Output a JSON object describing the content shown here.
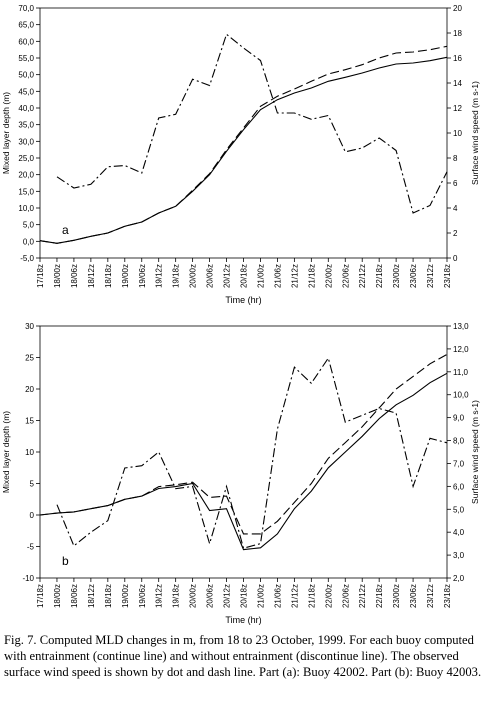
{
  "chart_data": [
    {
      "type": "line",
      "panel_label": "a",
      "xlabel": "Time (hr)",
      "ylabel": "Mixed layer depth (m)",
      "y2label": "Surface wind speed (m s-1)",
      "categories": [
        "17/18z",
        "18/00z",
        "18/06z",
        "18/12z",
        "18/18z",
        "19/00z",
        "19/06z",
        "19/12z",
        "19/18z",
        "20/00z",
        "20/06z",
        "20/12z",
        "20/18z",
        "21/00z",
        "21/06z",
        "21/12z",
        "21/18z",
        "22/00z",
        "22/06z",
        "22/12z",
        "22/18z",
        "23/00z",
        "23/06z",
        "23/12z",
        "23/18z"
      ],
      "ylim": [
        -5,
        70
      ],
      "yticks": [
        "-5,0",
        "0,0",
        "5,0",
        "10,0",
        "15,0",
        "20,0",
        "25,0",
        "30,0",
        "35,0",
        "40,0",
        "45,0",
        "50,0",
        "55,0",
        "60,0",
        "65,0",
        "70,0"
      ],
      "y2lim": [
        0,
        20
      ],
      "y2ticks": [
        "0",
        "2",
        "4",
        "6",
        "8",
        "10",
        "12",
        "14",
        "16",
        "18",
        "20"
      ],
      "series": [
        {
          "key": "entrain",
          "axis": "left",
          "style": "solid",
          "values": [
            0.2,
            -0.6,
            0.3,
            1.5,
            2.5,
            4.5,
            5.8,
            8.5,
            10.5,
            15,
            20,
            27,
            33.5,
            39.5,
            42.5,
            44.5,
            46,
            48,
            49.2,
            50.5,
            52,
            53.2,
            53.5,
            54.2,
            55.2
          ]
        },
        {
          "key": "no_entrain",
          "axis": "left",
          "style": "dash",
          "values": [
            0.2,
            -0.6,
            0.3,
            1.5,
            2.5,
            4.5,
            5.8,
            8.5,
            10.5,
            15.3,
            20.3,
            27.5,
            34,
            40.5,
            43.5,
            45.7,
            48,
            50.2,
            51.5,
            53,
            55,
            56.5,
            56.8,
            57.5,
            58.5
          ]
        },
        {
          "key": "wind",
          "axis": "right",
          "style": "dashdot",
          "values": [
            null,
            6.5,
            5.6,
            5.9,
            7.3,
            7.4,
            6.8,
            11.2,
            11.5,
            14.3,
            13.8,
            17.9,
            16.8,
            15.8,
            11.6,
            11.6,
            11.1,
            11.4,
            8.5,
            8.8,
            9.6,
            8.6,
            3.6,
            4.2,
            6.9
          ]
        }
      ]
    },
    {
      "type": "line",
      "panel_label": "b",
      "xlabel": "Time (hr)",
      "ylabel": "Mixed layer depth (m)",
      "y2label": "Surface wind speed (m s-1)",
      "categories": [
        "17/18z",
        "18/00z",
        "18/06z",
        "18/12z",
        "18/18z",
        "19/00z",
        "19/06z",
        "19/12z",
        "19/18z",
        "20/00z",
        "20/06z",
        "20/12z",
        "20/18z",
        "21/00z",
        "21/06z",
        "21/12z",
        "21/18z",
        "22/00z",
        "22/06z",
        "22/12z",
        "22/18z",
        "23/00z",
        "23/06z",
        "23/12z",
        "23/18z"
      ],
      "ylim": [
        -10,
        30
      ],
      "yticks": [
        "-10",
        "-5",
        "0",
        "5",
        "10",
        "15",
        "20",
        "25",
        "30"
      ],
      "y2lim": [
        2,
        13
      ],
      "y2ticks": [
        "2,0",
        "3,0",
        "4,0",
        "5,0",
        "6,0",
        "7,0",
        "8,0",
        "9,0",
        "10,0",
        "11,0",
        "12,0",
        "13,0"
      ],
      "series": [
        {
          "key": "entrain",
          "axis": "left",
          "style": "solid",
          "values": [
            0,
            0.3,
            0.5,
            1,
            1.5,
            2.5,
            3,
            4.2,
            4.5,
            5,
            0.7,
            1,
            -5.5,
            -5.2,
            -3,
            1,
            3.8,
            7.5,
            10,
            12.5,
            15.3,
            17.5,
            19,
            21,
            22.5
          ]
        },
        {
          "key": "no_entrain",
          "axis": "left",
          "style": "dash",
          "values": [
            0,
            0.3,
            0.5,
            1,
            1.5,
            2.5,
            3,
            4.5,
            4.8,
            5.2,
            2.8,
            3,
            -3,
            -3,
            -1,
            2,
            5,
            9,
            11.5,
            14,
            17,
            20,
            22,
            24,
            25.5
          ]
        },
        {
          "key": "wind",
          "axis": "right",
          "style": "dashdot",
          "values": [
            null,
            5.2,
            3.4,
            4.0,
            4.5,
            6.8,
            6.9,
            7.5,
            5.9,
            6.0,
            3.5,
            6.0,
            3.3,
            3.5,
            8.5,
            11.2,
            10.5,
            11.6,
            8.8,
            9.1,
            9.4,
            9.2,
            6.0,
            8.1,
            7.9
          ]
        }
      ]
    }
  ],
  "caption": "Fig. 7. Computed MLD changes in m, from 18 to 23 October, 1999. For each buoy computed with entrainment (continue line) and without entrainment (discontinue line). The observed surface wind speed is shown by dot and dash line. Part (a): Buoy 42002. Part (b): Buoy 42003."
}
